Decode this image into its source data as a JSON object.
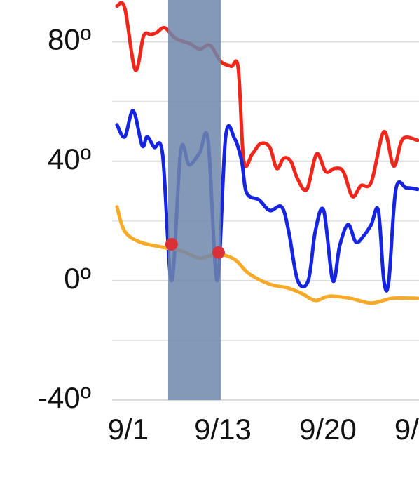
{
  "chart_data": {
    "type": "line",
    "xlim": [
      -1.53,
      27.67
    ],
    "xticks": [
      {
        "value": 0,
        "label": "9/1"
      },
      {
        "value": 9,
        "label": "9/13"
      },
      {
        "value": 19,
        "label": "9/20"
      },
      {
        "value": 26.5,
        "label": "9/"
      }
    ],
    "ylim": [
      -40,
      94
    ],
    "yticks": [
      {
        "value": -40,
        "label": "-40º"
      },
      {
        "value": 0,
        "label": "0º"
      },
      {
        "value": 40,
        "label": "40º"
      },
      {
        "value": 80,
        "label": "80º"
      }
    ],
    "grid_yticks": [
      -20,
      20,
      60
    ],
    "grid": true,
    "highlight": {
      "x": [
        3.8,
        8.8
      ],
      "color": "#6f87aa"
    },
    "markers": {
      "x": [
        4.13,
        8.6
      ],
      "values": [
        12.2,
        9.4
      ],
      "color": "#d9303a"
    },
    "series": [
      {
        "color": "#f0261b",
        "x": [
          -1.07,
          -0.33,
          0.67,
          1.47,
          2.13,
          2.67,
          3.47,
          4.47,
          5.8,
          6.8,
          7.8,
          8.8,
          9.8,
          10.47,
          11,
          11.8,
          12.6,
          13.47,
          14.13,
          14.8,
          15.47,
          16.13,
          17,
          17.93,
          18.8,
          19.67,
          20.47,
          21.33,
          22.13,
          23.13,
          24.33,
          25.27,
          26.13,
          27.53
        ],
        "values": [
          92,
          91.3,
          70.6,
          82,
          82.4,
          83,
          84.7,
          81.2,
          79.5,
          77.6,
          78.8,
          73.4,
          71.8,
          71.1,
          40,
          42.4,
          45.9,
          44.7,
          37.6,
          41,
          40,
          34,
          30.6,
          42.4,
          36.5,
          37.6,
          36.5,
          28.2,
          31.8,
          33,
          49.9,
          38.4,
          47.5,
          47
        ]
      },
      {
        "color": "#1424e0",
        "x": [
          -1.07,
          -0.33,
          0.47,
          1.33,
          1.8,
          2.47,
          3.27,
          4.13,
          5,
          5.8,
          6.8,
          7.6,
          8.47,
          9.27,
          10.13,
          10.8,
          11.27,
          12.47,
          13.47,
          14.6,
          15.27,
          16.13,
          17.13,
          17.8,
          18.6,
          19.47,
          20.13,
          20.93,
          21.67,
          22.47,
          23.13,
          23.8,
          24.33,
          24.8,
          25.47,
          26.47,
          27.53
        ],
        "values": [
          52.2,
          48.2,
          56.9,
          45.2,
          48.2,
          44.7,
          42.4,
          0,
          43.5,
          38.8,
          42.8,
          47,
          0,
          48.2,
          47.5,
          40,
          29.4,
          27,
          23.5,
          24.7,
          16.5,
          0,
          0,
          16.5,
          23.5,
          0,
          11.8,
          18.8,
          12.9,
          15.3,
          18.8,
          23.5,
          0,
          0,
          30.6,
          31.1,
          30.6
        ]
      },
      {
        "color": "#f7a928",
        "x": [
          -1.07,
          -0.33,
          1.13,
          3.13,
          5.13,
          6.8,
          8.47,
          10.13,
          11.47,
          13.47,
          15.13,
          16.47,
          17.8,
          19.13,
          21.13,
          23.13,
          25.13,
          27.53
        ],
        "values": [
          24.7,
          16.5,
          12.9,
          11.3,
          9.9,
          7.5,
          8.9,
          7.1,
          2.4,
          -1.2,
          -2.4,
          -4.2,
          -6.6,
          -5.2,
          -5.9,
          -7.5,
          -5.9,
          -5.9
        ]
      }
    ]
  }
}
